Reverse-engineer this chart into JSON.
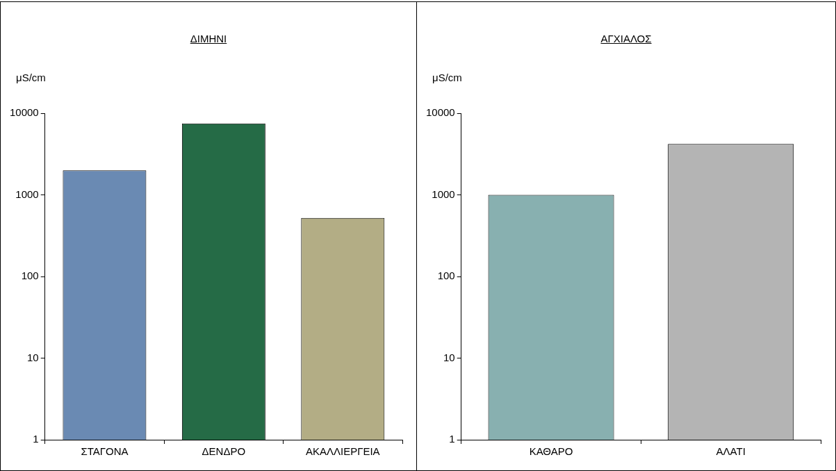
{
  "chart_data": [
    {
      "type": "bar",
      "title": "ΔΙΜΗΝΙ",
      "ylabel": "μS/cm",
      "categories": [
        "ΣΤΑΓΟΝΑ",
        "ΔΕΝΔΡΟ",
        "ΑΚΑΛΛΙΕΡΓΕΙΑ"
      ],
      "values": [
        2000,
        7500,
        520
      ],
      "colors": [
        "#6a8ab3",
        "#256b46",
        "#b3ad85"
      ],
      "log": "y",
      "ylim": [
        1,
        10000
      ],
      "yticks": [
        1,
        10,
        100,
        1000,
        10000
      ],
      "grid": false,
      "legend": false
    },
    {
      "type": "bar",
      "title": "ΑΓΧΙΑΛΟΣ",
      "ylabel": "μS/cm",
      "categories": [
        "ΚΑΘΑΡΟ",
        "ΑΛΑΤΙ"
      ],
      "values": [
        1000,
        4200
      ],
      "colors": [
        "#88b0b0",
        "#b4b4b4"
      ],
      "log": "y",
      "ylim": [
        1,
        10000
      ],
      "yticks": [
        1,
        10,
        100,
        1000,
        10000
      ],
      "grid": false,
      "legend": false
    }
  ]
}
